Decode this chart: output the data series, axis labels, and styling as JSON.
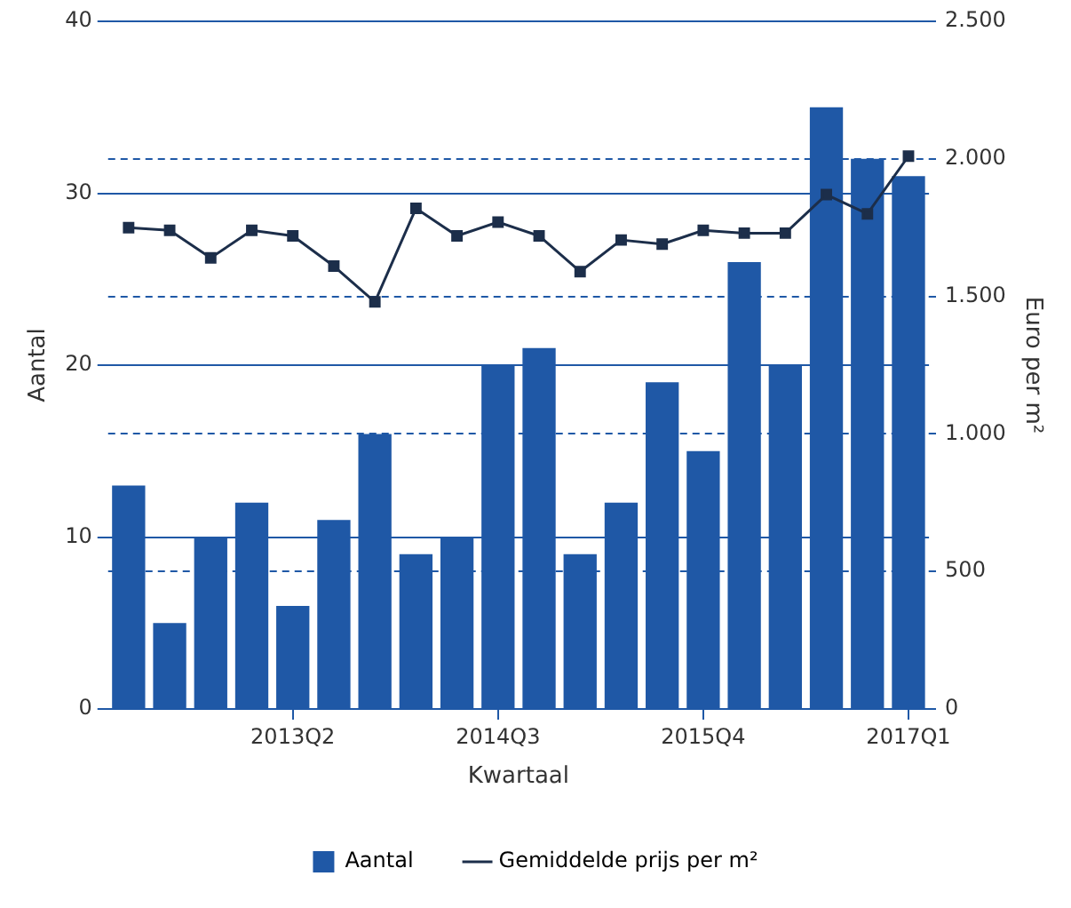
{
  "chart_data": {
    "type": "bar",
    "xlabel": "Kwartaal",
    "ylabel": "Aantal",
    "y2label": "Euro per m²",
    "categories": [
      null,
      null,
      null,
      null,
      "2013Q2",
      null,
      null,
      null,
      null,
      "2014Q3",
      null,
      null,
      null,
      null,
      "2015Q4",
      null,
      null,
      null,
      null,
      "2017Q1"
    ],
    "series": [
      {
        "name": "Aantal",
        "color": "#1f58a6",
        "values": [
          13,
          5,
          10,
          12,
          6,
          11,
          16,
          9,
          10,
          20,
          21,
          9,
          12,
          19,
          15,
          26,
          20,
          35,
          32,
          31
        ]
      },
      {
        "name": "Gemiddelde prijs per m²",
        "type": "line",
        "axis": "y2",
        "color": "#1c2e4a",
        "marker": "square",
        "values": [
          1750,
          1740,
          1640,
          1740,
          1720,
          1610,
          1480,
          1820,
          1720,
          1770,
          1720,
          1590,
          1705,
          1690,
          1740,
          1730,
          1730,
          1870,
          1800,
          2010
        ]
      }
    ],
    "ylim": [
      0,
      40
    ],
    "yticks": [
      0,
      10,
      20,
      30,
      40
    ],
    "y2lim": [
      0,
      2500
    ],
    "y2ticks": [
      0,
      500,
      {
        "value": 1000,
        "label": "1.000"
      },
      {
        "value": 1500,
        "label": "1.500"
      },
      {
        "value": 2000,
        "label": "2.000"
      },
      {
        "value": 2500,
        "label": "2.500"
      }
    ],
    "grid": true,
    "legend": "bottom"
  }
}
